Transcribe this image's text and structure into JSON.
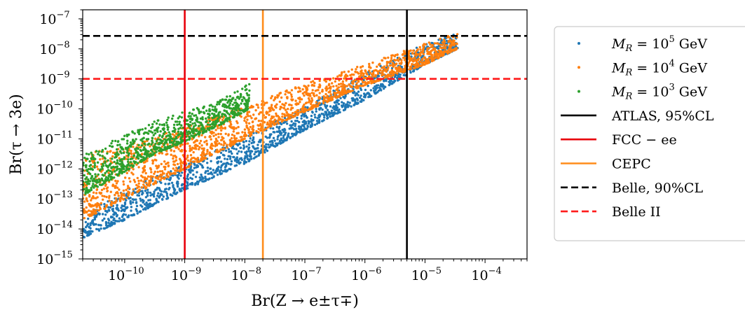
{
  "chart_data": {
    "type": "scatter",
    "xlabel": "Br(Z → e±τ∓)",
    "ylabel": "Br(τ → 3e)",
    "x_scale": "log",
    "y_scale": "log",
    "xlim": [
      2e-11,
      0.0005
    ],
    "ylim": [
      1e-15,
      2e-07
    ],
    "grid": false,
    "legend_position": "right, outside plot",
    "x_ticks": [
      {
        "base": "10",
        "exp": "−10",
        "value": 1e-10
      },
      {
        "base": "10",
        "exp": "−9",
        "value": 1e-09
      },
      {
        "base": "10",
        "exp": "−8",
        "value": 1e-08
      },
      {
        "base": "10",
        "exp": "−7",
        "value": 1e-07
      },
      {
        "base": "10",
        "exp": "−6",
        "value": 1e-06
      },
      {
        "base": "10",
        "exp": "−5",
        "value": 1e-05
      },
      {
        "base": "10",
        "exp": "−4",
        "value": 0.0001
      }
    ],
    "y_ticks": [
      {
        "base": "10",
        "exp": "−15",
        "value": 1e-15
      },
      {
        "base": "10",
        "exp": "−14",
        "value": 1e-14
      },
      {
        "base": "10",
        "exp": "−13",
        "value": 1e-13
      },
      {
        "base": "10",
        "exp": "−12",
        "value": 1e-12
      },
      {
        "base": "10",
        "exp": "−11",
        "value": 1e-11
      },
      {
        "base": "10",
        "exp": "−10",
        "value": 1e-10
      },
      {
        "base": "10",
        "exp": "−9",
        "value": 1e-09
      },
      {
        "base": "10",
        "exp": "−8",
        "value": 1e-08
      },
      {
        "base": "10",
        "exp": "−7",
        "value": 1e-07
      }
    ],
    "series": [
      {
        "name": "M_R = 10^5 GeV",
        "legend_label": {
          "pre": "M",
          "sub": "R",
          "mid": " = 10",
          "sup": "5",
          "post": " GeV"
        },
        "color": "#1f77b4",
        "band": [
          {
            "x": 2e-11,
            "y_low": 5e-15,
            "y_high": 3e-14
          },
          {
            "x": 1e-10,
            "y_low": 2e-14,
            "y_high": 2e-13
          },
          {
            "x": 1e-09,
            "y_low": 2e-13,
            "y_high": 1.5e-12
          },
          {
            "x": 1e-08,
            "y_low": 1.5e-12,
            "y_high": 1.2e-11
          },
          {
            "x": 1e-07,
            "y_low": 2e-11,
            "y_high": 1.2e-10
          },
          {
            "x": 1e-06,
            "y_low": 2e-10,
            "y_high": 1.5e-09
          },
          {
            "x": 1e-05,
            "y_low": 3e-09,
            "y_high": 1.5e-08
          },
          {
            "x": 3.5e-05,
            "y_low": 1e-08,
            "y_high": 3.5e-08
          }
        ]
      },
      {
        "name": "M_R = 10^4 GeV",
        "legend_label": {
          "pre": "M",
          "sub": "R",
          "mid": " = 10",
          "sup": "4",
          "post": " GeV"
        },
        "color": "#ff7f0e",
        "band": [
          {
            "x": 2e-11,
            "y_low": 2e-14,
            "y_high": 3e-12
          },
          {
            "x": 1e-10,
            "y_low": 1e-13,
            "y_high": 6e-12
          },
          {
            "x": 1e-09,
            "y_low": 1e-12,
            "y_high": 2.5e-11
          },
          {
            "x": 1e-08,
            "y_low": 1e-11,
            "y_high": 1.2e-10
          },
          {
            "x": 1e-07,
            "y_low": 8e-11,
            "y_high": 7e-10
          },
          {
            "x": 1e-06,
            "y_low": 6e-10,
            "y_high": 3e-09
          },
          {
            "x": 1e-05,
            "y_low": 3e-09,
            "y_high": 1.5e-08
          },
          {
            "x": 3.5e-05,
            "y_low": 1e-08,
            "y_high": 3.5e-08
          }
        ]
      },
      {
        "name": "M_R = 10^3 GeV",
        "legend_label": {
          "pre": "M",
          "sub": "R",
          "mid": " = 10",
          "sup": "3",
          "post": " GeV"
        },
        "color": "#2ca02c",
        "band": [
          {
            "x": 2e-11,
            "y_low": 1.3e-13,
            "y_high": 3e-12
          },
          {
            "x": 1e-10,
            "y_low": 8e-13,
            "y_high": 1.3e-11
          },
          {
            "x": 3e-10,
            "y_low": 3e-12,
            "y_high": 4e-11
          },
          {
            "x": 1e-09,
            "y_low": 8e-12,
            "y_high": 8e-11
          },
          {
            "x": 4e-09,
            "y_low": 3e-11,
            "y_high": 2e-10
          },
          {
            "x": 1.2e-08,
            "y_low": 1e-10,
            "y_high": 7e-10
          }
        ]
      }
    ],
    "reference_lines": [
      {
        "label": "ATLAS, 95%CL",
        "orientation": "vertical",
        "value": 5e-06,
        "color": "#000000",
        "style": "solid"
      },
      {
        "label": "FCC − ee",
        "orientation": "vertical",
        "value": 1e-09,
        "color": "#e8000b",
        "style": "solid"
      },
      {
        "label": "CEPC",
        "orientation": "vertical",
        "value": 2e-08,
        "color": "#ff8c1a",
        "style": "solid"
      },
      {
        "label": "Belle, 90%CL",
        "orientation": "horizontal",
        "value": 2.7e-08,
        "color": "#000000",
        "style": "dashed"
      },
      {
        "label": "Belle II",
        "orientation": "horizontal",
        "value": 1e-09,
        "color": "#ff1a1a",
        "style": "dashed"
      }
    ]
  }
}
